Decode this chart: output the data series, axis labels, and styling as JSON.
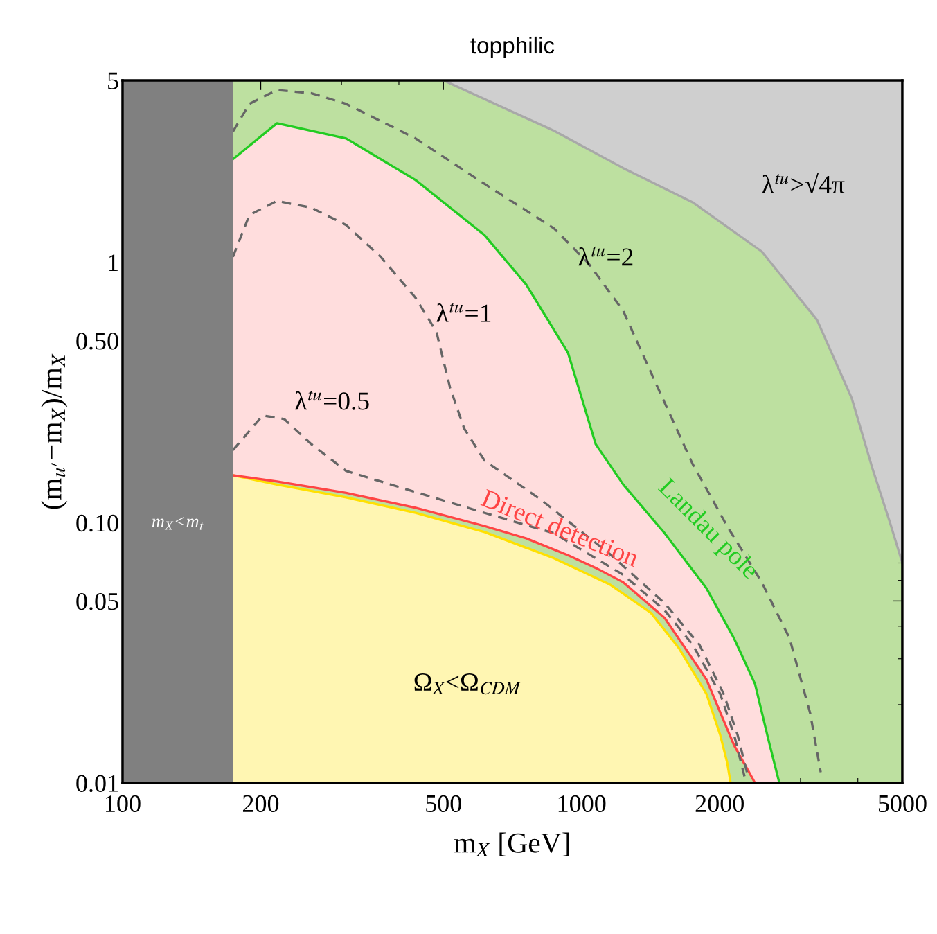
{
  "chart_data": {
    "type": "line",
    "title": "topphilic",
    "xlabel": "m$_{X}$ [GeV]",
    "ylabel": "(m$_{u′}$−m$_{X}$)/m$_{X}$",
    "log": "xy",
    "xlim": [
      100,
      5000
    ],
    "ylim": [
      0.01,
      5
    ],
    "xticks": [
      100,
      200,
      500,
      1000,
      2000,
      5000
    ],
    "yticks": [
      {
        "value": 0.01,
        "label": "0.01"
      },
      {
        "value": 0.05,
        "label": "0.05"
      },
      {
        "value": 0.1,
        "label": "0.10"
      },
      {
        "value": 0.5,
        "label": "0.50"
      },
      1,
      5
    ],
    "bands": [
      {
        "axis": "y",
        "from": 0.01,
        "to": 5,
        "color": "#bde0a0"
      },
      {
        "axis": "x",
        "from": 100,
        "to": 174,
        "label": "m$_{X}$<m$_{t}$",
        "color": "#808080"
      }
    ],
    "annotations": [
      "λ$^{tu}$>√4π",
      "Ω$_{X}$<Ω$_{CDM}$"
    ],
    "series": [
      {
        "color": "#a8a8a8",
        "line_style": "solid",
        "x": [
          500,
          871,
          1233,
          1746,
          2470,
          3260,
          3880,
          4310,
          4700,
          5000
        ],
        "values": [
          5,
          3.2,
          2.3,
          1.7,
          1.1,
          0.6,
          0.3,
          0.16,
          0.1,
          0.07
        ],
        "lower": [
          5,
          3.2,
          2.3,
          1.7,
          1.1,
          0.6,
          0.3,
          0.16,
          0.1,
          0.07
        ],
        "upper": [
          5,
          5,
          5,
          5,
          5,
          5,
          5,
          5,
          5,
          5
        ]
      },
      {
        "color": "#ffe000",
        "line_style": "solid",
        "x": [
          174,
          217,
          307,
          435,
          615,
          871,
          1150,
          1417,
          1629,
          1871,
          2005,
          2076,
          2113
        ],
        "values": [
          0.152,
          0.14,
          0.125,
          0.109,
          0.092,
          0.073,
          0.058,
          0.045,
          0.033,
          0.022,
          0.0153,
          0.012,
          0.01
        ],
        "lower": [
          0.01,
          0.01,
          0.01,
          0.01,
          0.01,
          0.01,
          0.01,
          0.01,
          0.01,
          0.01,
          0.01,
          0.01,
          0.01
        ],
        "upper": [
          0.152,
          0.14,
          0.125,
          0.109,
          0.092,
          0.073,
          0.058,
          0.045,
          0.033,
          0.022,
          0.0153,
          0.012,
          0.01
        ]
      },
      {
        "name": "Direct detection",
        "color": "#ff4444",
        "line_style": "solid",
        "x": [
          174,
          217,
          307,
          435,
          615,
          758,
          934,
          1074,
          1233,
          1518,
          1871,
          2148,
          2388,
          2558,
          2698
        ],
        "values": [
          0.152,
          0.144,
          0.13,
          0.114,
          0.097,
          0.087,
          0.075,
          0.067,
          0.059,
          0.043,
          0.025,
          0.014,
          0.01,
          null,
          null
        ],
        "lower": [
          0.152,
          0.144,
          0.13,
          0.114,
          0.097,
          0.087,
          0.075,
          0.067,
          0.059,
          0.043,
          0.025,
          0.014,
          0.01,
          0.01,
          0.01
        ],
        "upper": [
          2.49,
          3.42,
          2.99,
          2.07,
          1.27,
          0.82,
          0.45,
          0.2,
          0.14,
          0.091,
          0.056,
          0.036,
          0.024,
          0.0145,
          0.01
        ]
      },
      {
        "name": "Landau pole",
        "color": "#22cc22",
        "line_style": "solid",
        "x": [
          174,
          217,
          307,
          435,
          615,
          758,
          934,
          1074,
          1233,
          1518,
          1871,
          2148,
          2388,
          2558,
          2698
        ],
        "values": [
          2.49,
          3.42,
          2.99,
          2.07,
          1.27,
          0.82,
          0.45,
          0.2,
          0.14,
          0.091,
          0.056,
          0.036,
          0.024,
          0.0145,
          0.01
        ]
      },
      {
        "name": "λ$^{tu}$=2",
        "color": "#666666",
        "line_style": "dashed",
        "x": [
          174,
          189,
          217,
          258,
          307,
          435,
          615,
          871,
          1036,
          1233,
          1466,
          1746,
          2076,
          2470,
          2839,
          3150,
          3320
        ],
        "values": [
          3.18,
          4.06,
          4.59,
          4.46,
          4.06,
          2.99,
          2.0,
          1.35,
          0.99,
          0.65,
          0.33,
          0.168,
          0.097,
          0.059,
          0.036,
          0.0185,
          0.011
        ]
      },
      {
        "name": "λ$^{tu}$=1",
        "color": "#666666",
        "line_style": "dashed",
        "x": [
          174,
          189,
          217,
          258,
          307,
          365,
          435,
          483,
          517,
          555,
          615,
          813,
          1150,
          1518,
          1806,
          2040,
          2188,
          2305
        ],
        "values": [
          1.05,
          1.52,
          1.72,
          1.62,
          1.39,
          1.05,
          0.73,
          0.54,
          0.33,
          0.23,
          0.173,
          0.123,
          0.076,
          0.049,
          0.034,
          0.022,
          0.0153,
          0.0106
        ]
      },
      {
        "name": "λ$^{tu}$=0.5",
        "color": "#666666",
        "line_style": "dashed",
        "x": [
          174,
          202,
          225,
          258,
          307,
          435,
          615,
          871,
          1233,
          1518,
          1746,
          2005,
          2150,
          2265
        ],
        "values": [
          0.19,
          0.258,
          0.25,
          0.2,
          0.158,
          0.131,
          0.109,
          0.091,
          0.063,
          0.046,
          0.034,
          0.022,
          0.0153,
          0.0106
        ]
      }
    ]
  }
}
